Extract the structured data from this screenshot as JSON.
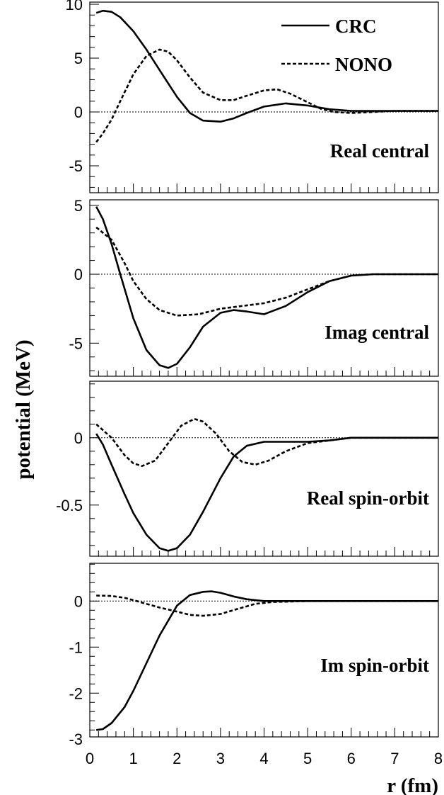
{
  "chart_data": {
    "type": "line",
    "xlabel": "r (fm)",
    "ylabel": "potential (MeV)",
    "xlim": [
      0,
      8
    ],
    "x_ticks": [
      "0",
      "1",
      "2",
      "3",
      "4",
      "5",
      "6",
      "7",
      "8"
    ],
    "legend": {
      "position": "top-right",
      "entries": [
        "CRC",
        "NONO"
      ]
    },
    "series_styles": [
      {
        "name": "CRC",
        "dash": "solid",
        "color": "#000000"
      },
      {
        "name": "NONO",
        "dash": "dotted",
        "color": "#000000"
      }
    ],
    "reference_line": {
      "y": 0,
      "style": "dotted"
    },
    "panels": [
      {
        "label": "Real central",
        "ylim": [
          -7.5,
          10.2
        ],
        "y_ticks": [
          "10",
          "5",
          "0",
          "-5"
        ],
        "y_tick_values": [
          10,
          5,
          0,
          -5
        ],
        "series": [
          {
            "name": "CRC",
            "x": [
              0.15,
              0.3,
              0.5,
              0.7,
              1.0,
              1.3,
              1.6,
              2.0,
              2.3,
              2.6,
              3.0,
              3.3,
              3.6,
              4.0,
              4.5,
              5.0,
              5.5,
              6.0,
              7.0,
              8.0
            ],
            "y": [
              9.2,
              9.4,
              9.3,
              8.8,
              7.5,
              5.8,
              3.9,
              1.4,
              -0.1,
              -0.8,
              -0.9,
              -0.6,
              -0.1,
              0.5,
              0.8,
              0.6,
              0.25,
              0.1,
              0.1,
              0.1
            ]
          },
          {
            "name": "NONO",
            "x": [
              0.15,
              0.3,
              0.5,
              0.7,
              1.0,
              1.3,
              1.6,
              1.8,
              2.0,
              2.3,
              2.6,
              3.0,
              3.3,
              3.6,
              4.0,
              4.3,
              4.6,
              5.0,
              5.3,
              5.6,
              6.0,
              6.5,
              7.0,
              8.0
            ],
            "y": [
              -2.8,
              -2.0,
              -0.7,
              1.0,
              3.5,
              5.2,
              5.8,
              5.6,
              4.8,
              3.2,
              1.8,
              1.1,
              1.1,
              1.5,
              2.0,
              2.1,
              1.7,
              0.9,
              0.3,
              0.0,
              -0.1,
              0.0,
              0.1,
              0.1
            ]
          }
        ]
      },
      {
        "label": "Imag central",
        "ylim": [
          -7.4,
          5.4
        ],
        "y_ticks": [
          "5",
          "0",
          "-5"
        ],
        "y_tick_values": [
          5,
          0,
          -5
        ],
        "series": [
          {
            "name": "CRC",
            "x": [
              0.15,
              0.3,
              0.5,
              0.7,
              1.0,
              1.3,
              1.6,
              1.8,
              2.0,
              2.3,
              2.6,
              3.0,
              3.3,
              3.6,
              4.0,
              4.5,
              5.0,
              5.5,
              6.0,
              6.5,
              7.0,
              8.0
            ],
            "y": [
              4.9,
              4.0,
              2.2,
              0.0,
              -3.2,
              -5.5,
              -6.6,
              -6.8,
              -6.5,
              -5.3,
              -3.8,
              -2.8,
              -2.6,
              -2.7,
              -2.9,
              -2.3,
              -1.3,
              -0.5,
              -0.1,
              0.0,
              0.0,
              0.0
            ]
          },
          {
            "name": "NONO",
            "x": [
              0.15,
              0.5,
              0.8,
              1.0,
              1.3,
              1.6,
              2.0,
              2.5,
              3.0,
              3.5,
              4.0,
              4.5,
              5.0,
              5.5,
              6.0,
              6.5,
              7.0,
              8.0
            ],
            "y": [
              3.4,
              2.5,
              0.8,
              -0.5,
              -1.8,
              -2.6,
              -3.0,
              -2.9,
              -2.5,
              -2.3,
              -2.1,
              -1.7,
              -1.1,
              -0.5,
              -0.1,
              0.0,
              0.0,
              0.0
            ]
          }
        ]
      },
      {
        "label": "Real spin-orbit",
        "ylim": [
          -0.88,
          0.42
        ],
        "y_ticks": [
          "0",
          "-0.5"
        ],
        "y_tick_values": [
          0,
          -0.5
        ],
        "series": [
          {
            "name": "CRC",
            "x": [
              0.15,
              0.3,
              0.5,
              0.8,
              1.0,
              1.3,
              1.6,
              1.8,
              2.0,
              2.3,
              2.6,
              3.0,
              3.3,
              3.6,
              4.0,
              4.5,
              5.0,
              5.5,
              6.0,
              7.0,
              8.0
            ],
            "y": [
              0.03,
              -0.05,
              -0.2,
              -0.42,
              -0.56,
              -0.72,
              -0.82,
              -0.84,
              -0.82,
              -0.72,
              -0.55,
              -0.3,
              -0.14,
              -0.06,
              -0.03,
              -0.03,
              -0.03,
              -0.02,
              0.0,
              0.0,
              0.0
            ]
          },
          {
            "name": "NONO",
            "x": [
              0.15,
              0.5,
              0.8,
              1.0,
              1.2,
              1.5,
              1.8,
              2.1,
              2.4,
              2.6,
              2.9,
              3.2,
              3.5,
              3.8,
              4.1,
              4.5,
              5.0,
              5.5,
              6.0,
              7.0,
              8.0
            ],
            "y": [
              0.1,
              0.0,
              -0.13,
              -0.19,
              -0.21,
              -0.17,
              -0.04,
              0.09,
              0.14,
              0.12,
              0.03,
              -0.1,
              -0.18,
              -0.2,
              -0.17,
              -0.1,
              -0.04,
              -0.02,
              0.0,
              0.0,
              0.0
            ]
          }
        ]
      },
      {
        "label": "Im spin-orbit",
        "ylim": [
          -2.95,
          0.82
        ],
        "y_ticks": [
          "0",
          "-1",
          "-2",
          "-3"
        ],
        "y_tick_values": [
          0,
          -1,
          -2,
          -3
        ],
        "series": [
          {
            "name": "CRC",
            "x": [
              0.15,
              0.3,
              0.5,
              0.8,
              1.0,
              1.3,
              1.6,
              2.0,
              2.3,
              2.6,
              2.8,
              3.0,
              3.3,
              3.6,
              4.0,
              4.5,
              5.0,
              6.0,
              8.0
            ],
            "y": [
              -2.8,
              -2.78,
              -2.65,
              -2.3,
              -1.95,
              -1.35,
              -0.75,
              -0.1,
              0.13,
              0.2,
              0.21,
              0.18,
              0.1,
              0.04,
              0.0,
              0.0,
              0.0,
              0.0,
              0.0
            ]
          },
          {
            "name": "NONO",
            "x": [
              0.15,
              0.5,
              0.8,
              1.0,
              1.3,
              1.6,
              2.0,
              2.3,
              2.6,
              3.0,
              3.4,
              3.8,
              4.2,
              5.0,
              6.0,
              8.0
            ],
            "y": [
              0.12,
              0.11,
              0.07,
              0.02,
              -0.06,
              -0.14,
              -0.23,
              -0.3,
              -0.32,
              -0.28,
              -0.17,
              -0.06,
              -0.02,
              0.0,
              0.0,
              0.0
            ]
          }
        ]
      }
    ]
  }
}
